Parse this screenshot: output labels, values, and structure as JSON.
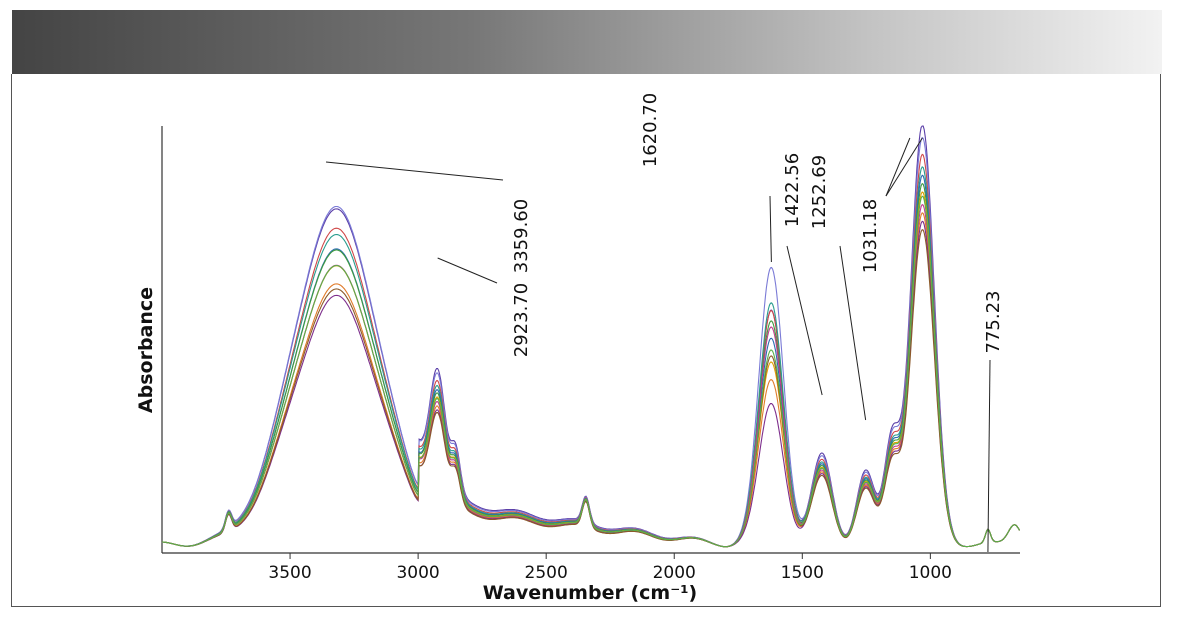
{
  "chart_data": {
    "type": "line",
    "title": "",
    "xlabel": "Wavenumber (cm⁻¹)",
    "ylabel": "Absorbance",
    "x_ticks": [
      3500,
      3000,
      2500,
      2000,
      1500,
      1000
    ],
    "xlim": [
      4000,
      650
    ],
    "ylim": [
      0,
      1.0
    ],
    "x_reversed": true,
    "grid": false,
    "legend": "none",
    "annotations": [
      {
        "label": "3359.60",
        "peaks": [
          3359.6
        ]
      },
      {
        "label": "2923.70",
        "peaks": [
          2923.7
        ]
      },
      {
        "label": "1620.70",
        "peaks": [
          1620.7
        ]
      },
      {
        "label": "1422.56",
        "peaks": [
          1422.56
        ]
      },
      {
        "label": "1252.69",
        "peaks": [
          1252.69
        ]
      },
      {
        "label": "1031.18",
        "peaks": [
          1080,
          1031.18
        ]
      },
      {
        "label": "775.23",
        "peaks": [
          775.23
        ]
      }
    ],
    "series": [
      {
        "color": "#5b3fa8",
        "scale": 1.0,
        "bias": 0.0
      },
      {
        "color": "#7a7ad6",
        "scale": 0.97,
        "bias": 0.03
      },
      {
        "color": "#d04848",
        "scale": 0.93,
        "bias": 0.01
      },
      {
        "color": "#2a9d8f",
        "scale": 0.9,
        "bias": 0.02
      },
      {
        "color": "#2b6ab0",
        "scale": 0.88,
        "bias": 0.0
      },
      {
        "color": "#3e9b3e",
        "scale": 0.86,
        "bias": 0.015
      },
      {
        "color": "#e0a000",
        "scale": 0.84,
        "bias": -0.01
      },
      {
        "color": "#c23b8e",
        "scale": 0.81,
        "bias": 0.02
      },
      {
        "color": "#e07b2a",
        "scale": 0.79,
        "bias": -0.015
      },
      {
        "color": "#7d2e8c",
        "scale": 0.77,
        "bias": -0.03
      },
      {
        "color": "#8c5a2a",
        "scale": 0.75,
        "bias": 0.01
      },
      {
        "color": "#5ab04a",
        "scale": 0.83,
        "bias": 0.0
      }
    ]
  }
}
